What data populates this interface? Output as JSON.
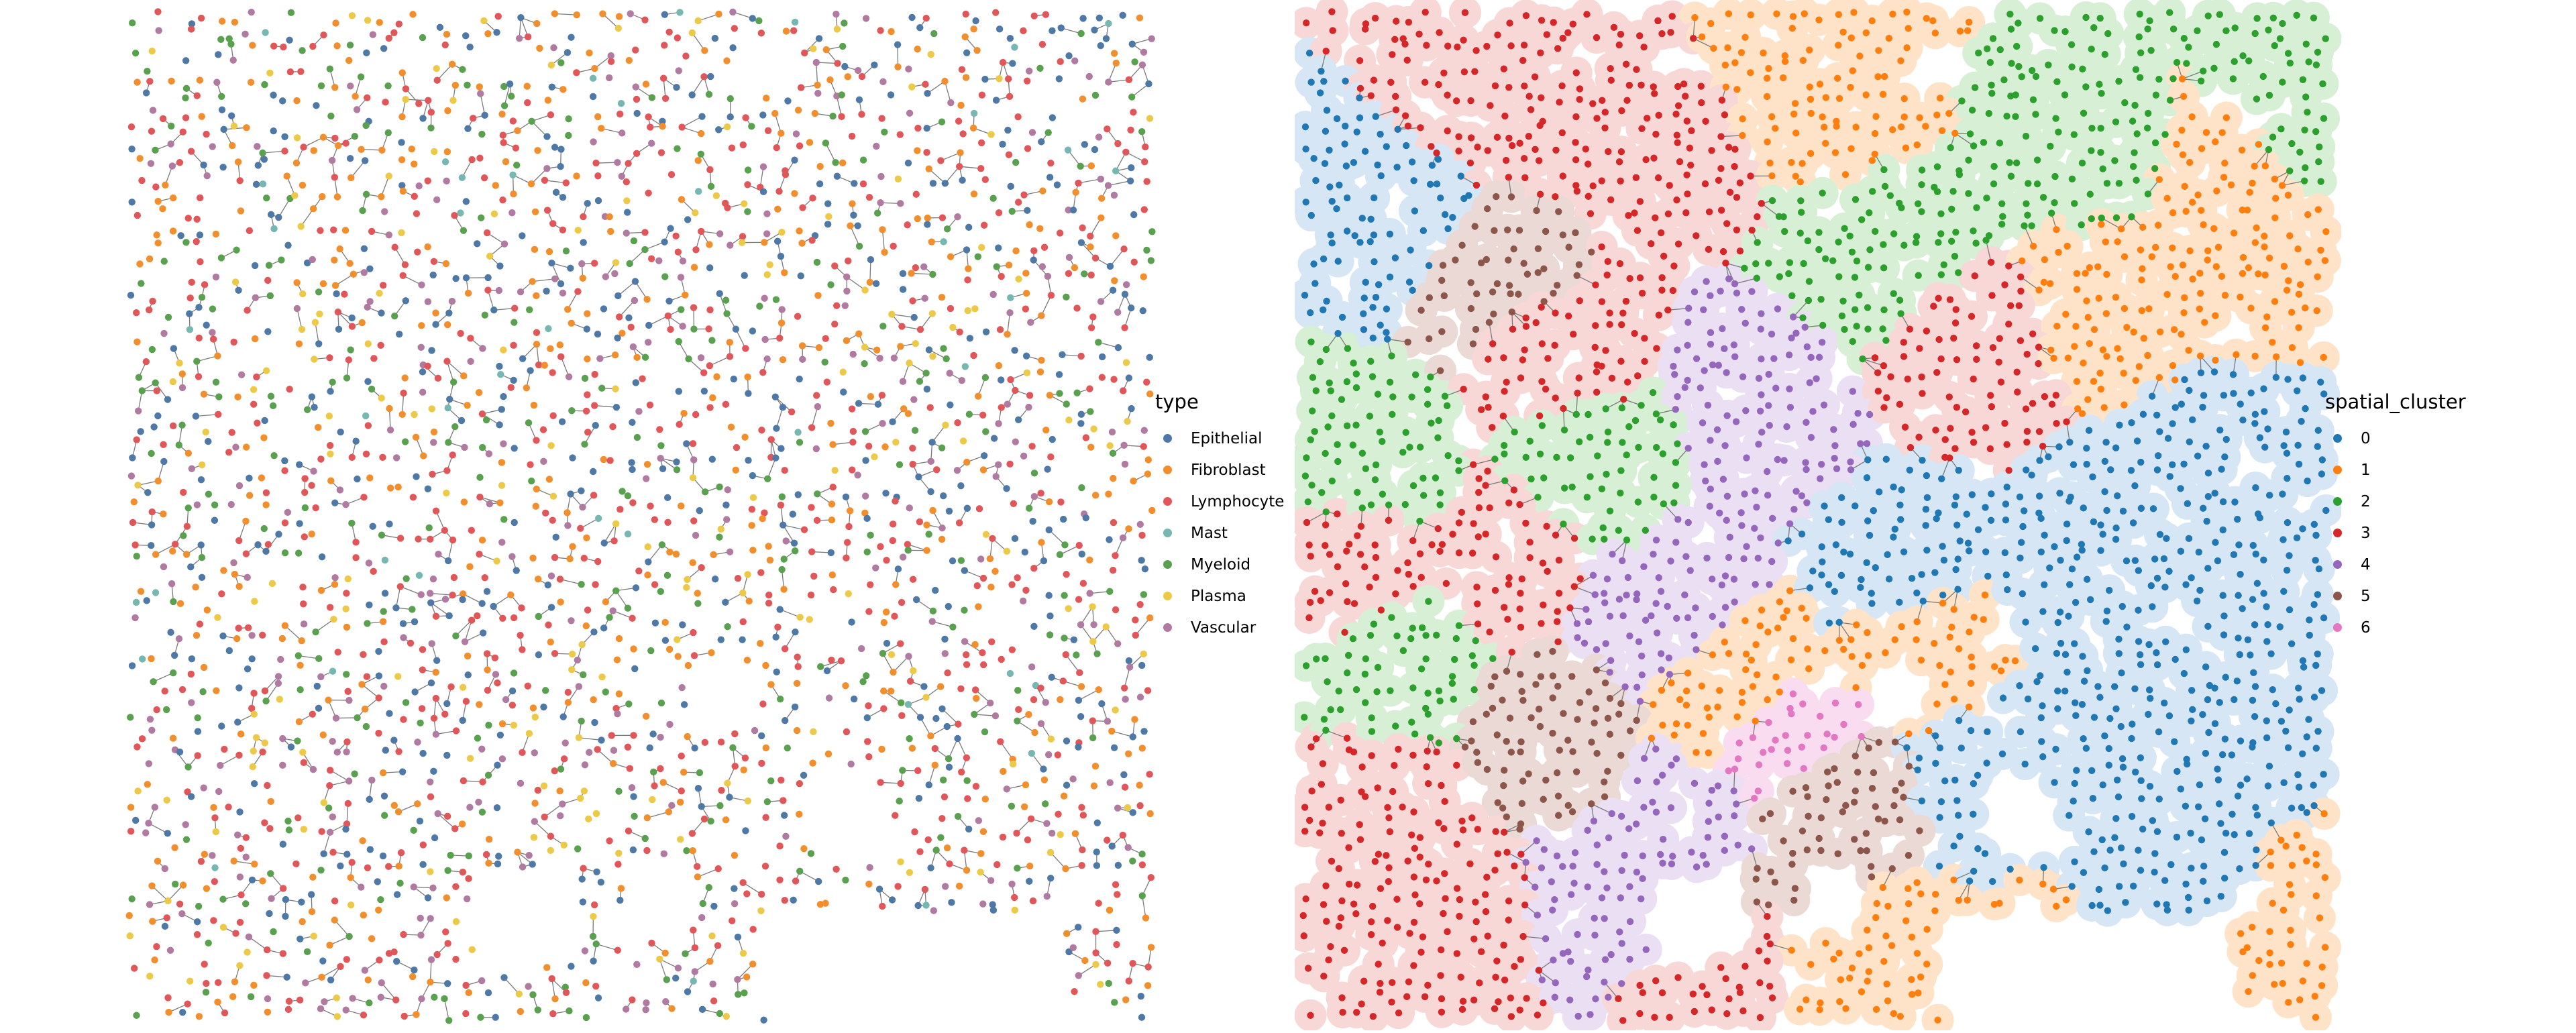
{
  "chart_data": [
    {
      "type": "scatter",
      "subtype": "spatial graph with cell-type coloring",
      "legend": {
        "title": "type",
        "position": "right",
        "entries": [
          {
            "label": "Epithelial",
            "color": "#4e79a7"
          },
          {
            "label": "Fibroblast",
            "color": "#f28e2b"
          },
          {
            "label": "Lymphocyte",
            "color": "#e15759"
          },
          {
            "label": "Mast",
            "color": "#76b7b2"
          },
          {
            "label": "Myeloid",
            "color": "#59a14f"
          },
          {
            "label": "Plasma",
            "color": "#edc948"
          },
          {
            "label": "Vascular",
            "color": "#b07aa1"
          }
        ]
      },
      "composition_estimate": {
        "Epithelial": 0.2,
        "Fibroblast": 0.2,
        "Lymphocyte": 0.26,
        "Mast": 0.02,
        "Myeloid": 0.13,
        "Plasma": 0.07,
        "Vascular": 0.12
      },
      "approx_cell_count": 2900,
      "axes": "hidden",
      "grid": false,
      "edges": "gray neighborhood graph connecting cells"
    },
    {
      "type": "scatter",
      "subtype": "spatial graph with cluster regions",
      "legend": {
        "title": "spatial_cluster",
        "position": "right",
        "entries": [
          {
            "label": "0",
            "color": "#1f77b4",
            "fill": "#d6e6f4"
          },
          {
            "label": "1",
            "color": "#ff7f0e",
            "fill": "#ffe3c8"
          },
          {
            "label": "2",
            "color": "#2ca02c",
            "fill": "#d7efd5"
          },
          {
            "label": "3",
            "color": "#d62728",
            "fill": "#f8d7d7"
          },
          {
            "label": "4",
            "color": "#9467bd",
            "fill": "#eadff3"
          },
          {
            "label": "5",
            "color": "#8c564b",
            "fill": "#ead9d5"
          },
          {
            "label": "6",
            "color": "#e377c2",
            "fill": "#f9dcef"
          }
        ]
      },
      "approx_cell_count": 2900,
      "axes": "hidden",
      "grid": false,
      "edges": "gray region boundaries with filled cluster areas"
    }
  ]
}
